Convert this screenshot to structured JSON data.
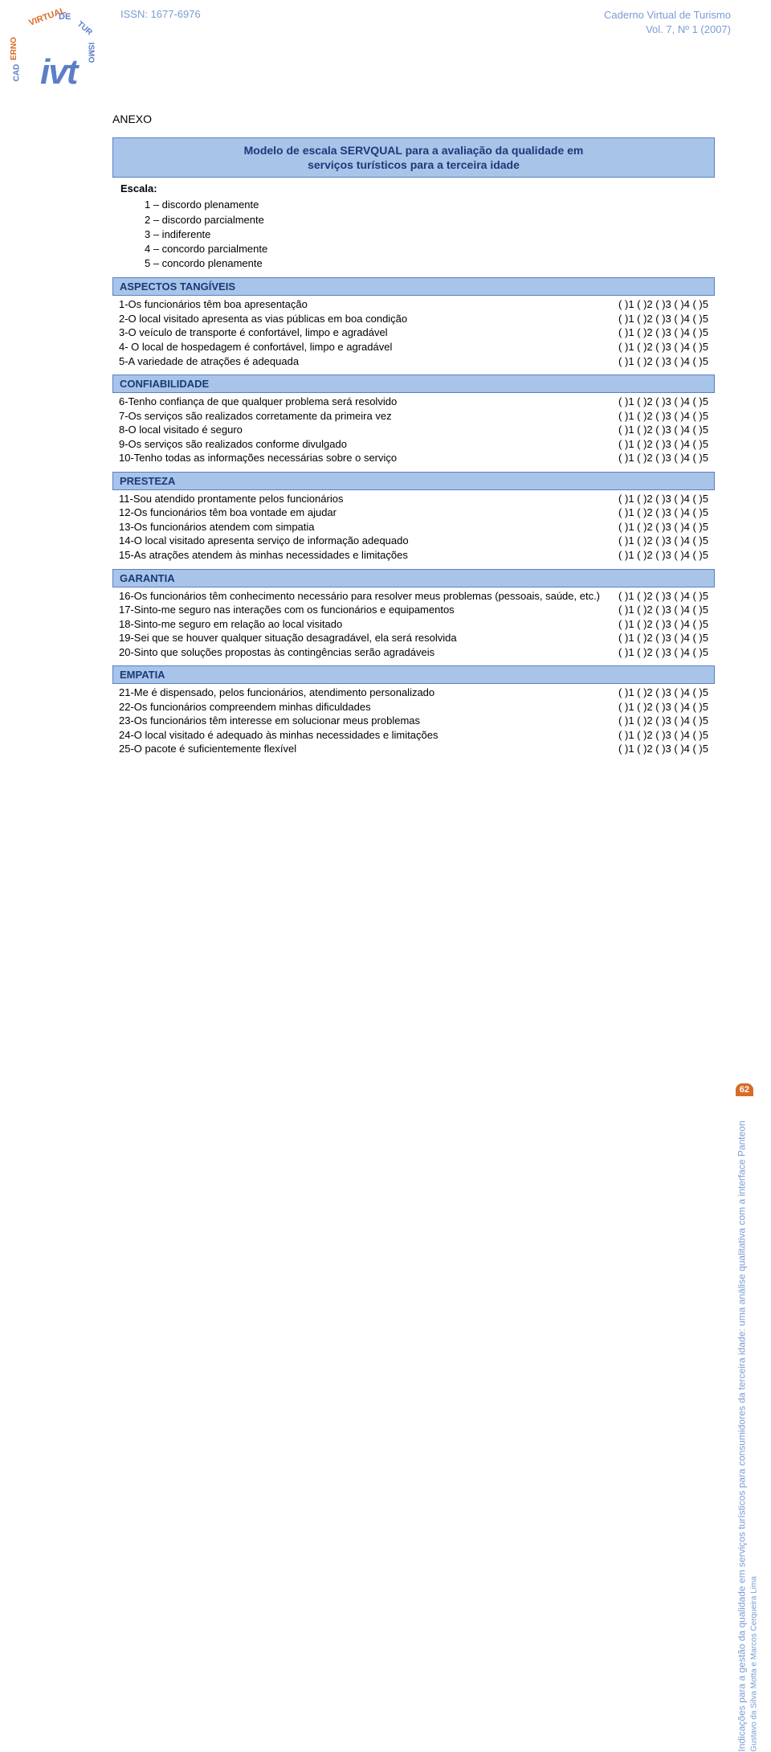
{
  "meta": {
    "journal_title": "Caderno Virtual de Turismo",
    "issn_label": "ISSN: 1677-6976",
    "issue": "Vol. 7, Nº 1 (2007)",
    "page_number": "62"
  },
  "logo": {
    "word_virtual": "VIRTUAL",
    "word_de": "DE",
    "word_turismo": "TURISMO",
    "word_caderno": "CADERNO",
    "ivt": "ivt"
  },
  "side": {
    "title": "Indicações para a gestão da qualidade em serviços turísticos para consumidores da terceira idade: uma análise qualitativa com a interface Panteon",
    "authors": "Gustavo da Silva Motta e Marcos Cerqueira Lima"
  },
  "anexo": "ANEXO",
  "title_line1": "Modelo de escala SERVQUAL para a avaliação da qualidade em",
  "title_line2": "serviços turísticos para a terceira idade",
  "escala_label": "Escala:",
  "escala_items": [
    "1 – discordo plenamente",
    "2 – discordo parcialmente",
    "3 – indiferente",
    "4 – concordo parcialmente",
    "5 – concordo plenamente"
  ],
  "scale_str": "( )1 ( )2 ( )3 ( )4 ( )5",
  "sections": [
    {
      "header": "ASPECTOS TANGÍVEIS",
      "items": [
        "1-Os funcionários têm boa apresentação",
        "2-O local visitado apresenta as vias públicas em boa condição",
        "3-O veículo de transporte é confortável, limpo e agradável",
        "4- O local de hospedagem é confortável, limpo e agradável",
        "5-A variedade de atrações é adequada"
      ]
    },
    {
      "header": "CONFIABILIDADE",
      "items": [
        "6-Tenho confiança de que qualquer problema será resolvido",
        "7-Os serviços são realizados corretamente da primeira vez",
        "8-O local visitado é seguro",
        "9-Os serviços são realizados conforme divulgado",
        "10-Tenho todas as informações necessárias sobre o serviço"
      ]
    },
    {
      "header": "PRESTEZA",
      "items": [
        "11-Sou atendido prontamente pelos funcionários",
        "12-Os funcionários têm boa vontade em ajudar",
        "13-Os funcionários atendem com simpatia",
        "14-O local visitado apresenta serviço de informação adequado",
        "15-As atrações atendem às minhas necessidades e limitações"
      ]
    },
    {
      "header": "GARANTIA",
      "items": [
        "16-Os funcionários têm conhecimento necessário para resolver meus problemas (pessoais, saúde, etc.)",
        "17-Sinto-me seguro nas interações com os funcionários e equipamentos",
        "18-Sinto-me seguro em relação ao local visitado",
        "19-Sei que se houver qualquer situação desagradável, ela será resolvida",
        "20-Sinto que soluções propostas às contingências serão agradáveis"
      ]
    },
    {
      "header": "EMPATIA",
      "items": [
        "21-Me é dispensado, pelos funcionários, atendimento personalizado",
        "22-Os funcionários compreendem minhas dificuldades",
        "23-Os funcionários têm interesse em solucionar meus problemas",
        "24-O local visitado é adequado às minhas necessidades e limitações",
        "25-O pacote é suficientemente flexível"
      ]
    }
  ],
  "colors": {
    "band_bg": "#a8c4e8",
    "band_border": "#5b7fc7",
    "band_text": "#1a3a7a",
    "header_text": "#7a9cd4",
    "orange": "#d96b28"
  }
}
